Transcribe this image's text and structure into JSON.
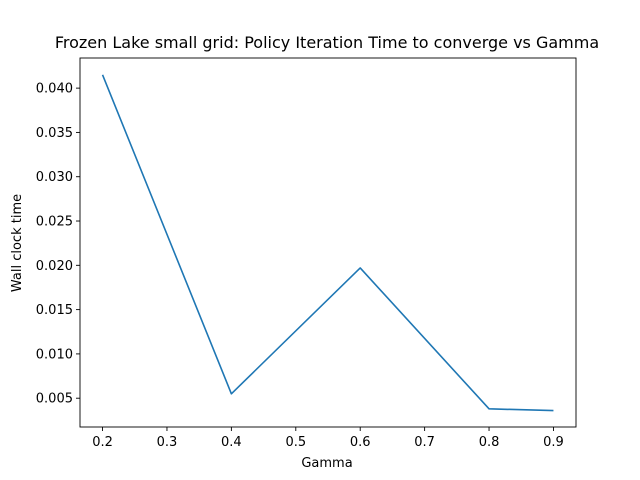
{
  "chart_data": {
    "type": "line",
    "title": "Frozen Lake small grid: Policy Iteration Time to converge vs Gamma",
    "xlabel": "Gamma",
    "ylabel": "Wall clock time",
    "xlim": [
      0.165,
      0.935
    ],
    "ylim": [
      0.00175,
      0.0434
    ],
    "x_ticks": [
      0.2,
      0.3,
      0.4,
      0.5,
      0.6,
      0.7,
      0.8,
      0.9
    ],
    "x_tick_labels": [
      "0.2",
      "0.3",
      "0.4",
      "0.5",
      "0.6",
      "0.7",
      "0.8",
      "0.9"
    ],
    "y_ticks": [
      0.005,
      0.01,
      0.015,
      0.02,
      0.025,
      0.03,
      0.035,
      0.04
    ],
    "y_tick_labels": [
      "0.005",
      "0.010",
      "0.015",
      "0.020",
      "0.025",
      "0.030",
      "0.035",
      "0.040"
    ],
    "grid": false,
    "series": [
      {
        "color": "#1f77b4",
        "x": [
          0.2,
          0.4,
          0.6,
          0.8,
          0.9
        ],
        "y": [
          0.0415,
          0.0055,
          0.0197,
          0.0038,
          0.0036
        ]
      }
    ]
  }
}
